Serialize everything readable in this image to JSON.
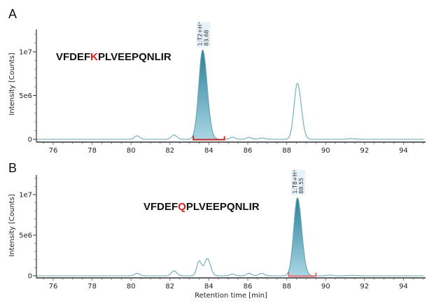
{
  "chart_data": [
    {
      "type": "line",
      "panel_label": "A",
      "peptide": {
        "prefix": "VFDEF",
        "highlight": "K",
        "suffix": "PLVEEPQNLIR"
      },
      "highlight_color": "#d0201c",
      "ylabel": "Intensity [Counts]",
      "xlabel": "",
      "xlim": [
        75.1,
        95.1
      ],
      "ylim": [
        0,
        12500000
      ],
      "x_ticks": [
        "76",
        "78",
        "80",
        "82",
        "84",
        "86",
        "88",
        "90",
        "92",
        "94"
      ],
      "y_ticks": [
        {
          "label": "0",
          "value": 0
        },
        {
          "label": "5e6",
          "value": 5000000
        },
        {
          "label": "1e7",
          "value": 10000000
        }
      ],
      "peaks": [
        {
          "rt": 80.3,
          "intensity": 400000,
          "width": 0.12
        },
        {
          "rt": 82.2,
          "intensity": 500000,
          "width": 0.13
        },
        {
          "rt": 83.68,
          "intensity": 10200000,
          "width": 0.2
        },
        {
          "rt": 85.2,
          "intensity": 250000,
          "width": 0.12
        },
        {
          "rt": 86.05,
          "intensity": 220000,
          "width": 0.12
        },
        {
          "rt": 86.7,
          "intensity": 150000,
          "width": 0.15
        },
        {
          "rt": 88.55,
          "intensity": 6400000,
          "width": 0.17
        },
        {
          "rt": 91.3,
          "intensity": 80000,
          "width": 0.15
        }
      ],
      "integration": {
        "start": 83.2,
        "end": 84.8
      },
      "annotation": {
        "line1": "1:T2+H⁺",
        "line2": "83.68",
        "rt": 83.68
      },
      "line_color": "#6aa8b4",
      "fill_color": "#3a8fa8",
      "bracket_color": "#c0282a"
    },
    {
      "type": "line",
      "panel_label": "B",
      "peptide": {
        "prefix": "VFDEF",
        "highlight": "Q",
        "suffix": "PLVEEPQNLIR"
      },
      "highlight_color": "#d0201c",
      "ylabel": "Intensity [Counts]",
      "xlabel": "Retention time [min]",
      "xlim": [
        75.1,
        95.1
      ],
      "ylim": [
        0,
        12500000
      ],
      "x_ticks": [
        "76",
        "78",
        "80",
        "82",
        "84",
        "86",
        "88",
        "90",
        "92",
        "94"
      ],
      "y_ticks": [
        {
          "label": "0",
          "value": 0
        },
        {
          "label": "5e6",
          "value": 5000000
        },
        {
          "label": "1e7",
          "value": 10000000
        }
      ],
      "peaks": [
        {
          "rt": 80.3,
          "intensity": 300000,
          "width": 0.12
        },
        {
          "rt": 82.2,
          "intensity": 600000,
          "width": 0.13
        },
        {
          "rt": 83.5,
          "intensity": 1800000,
          "width": 0.12
        },
        {
          "rt": 83.92,
          "intensity": 2100000,
          "width": 0.14
        },
        {
          "rt": 85.2,
          "intensity": 200000,
          "width": 0.12
        },
        {
          "rt": 86.05,
          "intensity": 300000,
          "width": 0.12
        },
        {
          "rt": 86.7,
          "intensity": 300000,
          "width": 0.13
        },
        {
          "rt": 88.55,
          "intensity": 9600000,
          "width": 0.19
        },
        {
          "rt": 90.2,
          "intensity": 80000,
          "width": 0.15
        },
        {
          "rt": 91.4,
          "intensity": 60000,
          "width": 0.2
        }
      ],
      "integration": {
        "start": 88.1,
        "end": 89.5
      },
      "annotation": {
        "line1": "1:T8+H⁺",
        "line2": "88.55",
        "rt": 88.55
      },
      "line_color": "#6aa8b4",
      "fill_color": "#3a8fa8",
      "bracket_color": "#e07070"
    }
  ]
}
